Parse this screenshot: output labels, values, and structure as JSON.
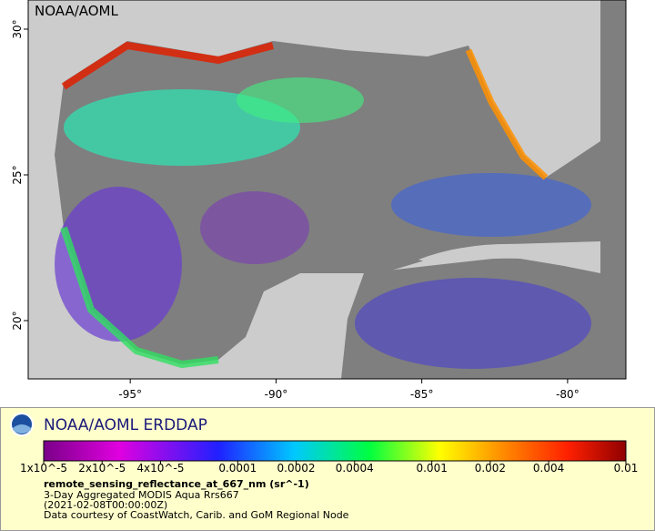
{
  "map": {
    "watermark": "NOAA/AOML",
    "xlim": [
      -98.5,
      -78
    ],
    "ylim": [
      18,
      31
    ],
    "xticks": [
      {
        "value": -95,
        "label": "-95°"
      },
      {
        "value": -90,
        "label": "-90°"
      },
      {
        "value": -85,
        "label": "-85°"
      },
      {
        "value": -80,
        "label": "-80°"
      }
    ],
    "yticks": [
      {
        "value": 30,
        "label": "30°"
      },
      {
        "value": 25,
        "label": "25°"
      },
      {
        "value": 20,
        "label": "20°"
      }
    ]
  },
  "legend": {
    "title": "NOAA/AOML ERDDAP",
    "colorbar": {
      "scale": "log",
      "range": [
        1e-05,
        0.01
      ],
      "ticks": [
        {
          "value": 1e-05,
          "label": "1x10^-5"
        },
        {
          "value": 2e-05,
          "label": "2x10^-5"
        },
        {
          "value": 4e-05,
          "label": "4x10^-5"
        },
        0.0001,
        0.0002,
        0.0004,
        0.001,
        0.002,
        0.004,
        0.01
      ]
    },
    "variable": "remote_sensing_reflectance_at_667_nm (sr^-1)",
    "lines": [
      "3-Day Aggregated MODIS Aqua Rrs667",
      "(2021-02-08T00:00:00Z)",
      "Data courtesy of CoastWatch, Carib. and GoM Regional Node"
    ]
  }
}
